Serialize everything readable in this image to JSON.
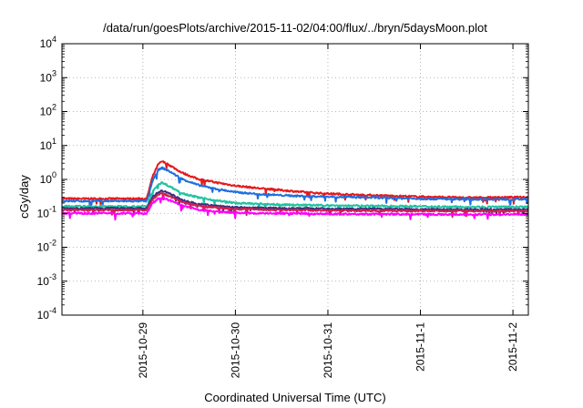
{
  "chart_data": {
    "type": "line",
    "title": "/data/run/goesPlots/archive/2015-11-02/04:00/flux/../bryn/5daysMoon.plot",
    "xlabel": "Coordinated Universal Time (UTC)",
    "ylabel": "cGy/day",
    "yscale": "log",
    "ylim": [
      0.0001,
      10000
    ],
    "xlim": [
      "2015-10-28 03:00",
      "2015-11-02 04:00"
    ],
    "x_ticks": [
      "2015-10-29",
      "2015-10-30",
      "2015-10-31",
      "2015-11-1",
      "2015-11-2"
    ],
    "y_ticks": [
      {
        "base": "10",
        "exp": "-4"
      },
      {
        "base": "10",
        "exp": "-3"
      },
      {
        "base": "10",
        "exp": "-2"
      },
      {
        "base": "10",
        "exp": "-1"
      },
      {
        "base": "10",
        "exp": "0"
      },
      {
        "base": "10",
        "exp": "1"
      },
      {
        "base": "10",
        "exp": "2"
      },
      {
        "base": "10",
        "exp": "3"
      },
      {
        "base": "10",
        "exp": "4"
      }
    ],
    "grid": true,
    "series": [
      {
        "color": "#e41a1c",
        "points": [
          [
            "2015-10-28 03:00",
            0.27
          ],
          [
            "2015-10-29 00:00",
            0.27
          ],
          [
            "2015-10-29 01:00",
            0.27
          ],
          [
            "2015-10-29 02:30",
            1.2
          ],
          [
            "2015-10-29 04:00",
            2.8
          ],
          [
            "2015-10-29 05:00",
            3.4
          ],
          [
            "2015-10-29 07:00",
            2.6
          ],
          [
            "2015-10-29 10:00",
            1.6
          ],
          [
            "2015-10-29 14:00",
            1.05
          ],
          [
            "2015-10-29 18:00",
            0.85
          ],
          [
            "2015-10-30 00:00",
            0.65
          ],
          [
            "2015-10-30 06:00",
            0.55
          ],
          [
            "2015-10-30 12:00",
            0.48
          ],
          [
            "2015-10-30 18:00",
            0.42
          ],
          [
            "2015-10-31 00:00",
            0.38
          ],
          [
            "2015-10-31 12:00",
            0.34
          ],
          [
            "2015-11-01 00:00",
            0.31
          ],
          [
            "2015-11-01 12:00",
            0.29
          ],
          [
            "2015-11-02 04:00",
            0.3
          ]
        ]
      },
      {
        "color": "#1f6fe0",
        "points": [
          [
            "2015-10-28 03:00",
            0.23
          ],
          [
            "2015-10-29 00:00",
            0.23
          ],
          [
            "2015-10-29 01:00",
            0.23
          ],
          [
            "2015-10-29 02:30",
            0.9
          ],
          [
            "2015-10-29 04:00",
            1.9
          ],
          [
            "2015-10-29 05:00",
            2.2
          ],
          [
            "2015-10-29 07:00",
            1.7
          ],
          [
            "2015-10-29 10:00",
            1.05
          ],
          [
            "2015-10-29 14:00",
            0.7
          ],
          [
            "2015-10-29 18:00",
            0.55
          ],
          [
            "2015-10-30 00:00",
            0.42
          ],
          [
            "2015-10-30 06:00",
            0.37
          ],
          [
            "2015-10-30 12:00",
            0.34
          ],
          [
            "2015-10-30 18:00",
            0.32
          ],
          [
            "2015-10-31 00:00",
            0.31
          ],
          [
            "2015-10-31 12:00",
            0.29
          ],
          [
            "2015-11-01 00:00",
            0.27
          ],
          [
            "2015-11-01 12:00",
            0.26
          ],
          [
            "2015-11-02 04:00",
            0.26
          ]
        ]
      },
      {
        "color": "#1fc3a0",
        "points": [
          [
            "2015-10-28 03:00",
            0.16
          ],
          [
            "2015-10-29 00:00",
            0.16
          ],
          [
            "2015-10-29 01:00",
            0.16
          ],
          [
            "2015-10-29 02:30",
            0.45
          ],
          [
            "2015-10-29 04:00",
            0.72
          ],
          [
            "2015-10-29 05:00",
            0.8
          ],
          [
            "2015-10-29 07:00",
            0.62
          ],
          [
            "2015-10-29 10:00",
            0.4
          ],
          [
            "2015-10-29 14:00",
            0.3
          ],
          [
            "2015-10-29 18:00",
            0.25
          ],
          [
            "2015-10-30 00:00",
            0.2
          ],
          [
            "2015-10-30 06:00",
            0.19
          ],
          [
            "2015-10-30 12:00",
            0.18
          ],
          [
            "2015-10-30 18:00",
            0.175
          ],
          [
            "2015-10-31 00:00",
            0.17
          ],
          [
            "2015-10-31 12:00",
            0.165
          ],
          [
            "2015-11-01 00:00",
            0.16
          ],
          [
            "2015-11-01 12:00",
            0.155
          ],
          [
            "2015-11-02 04:00",
            0.155
          ]
        ]
      },
      {
        "color": "#3b2f7f",
        "points": [
          [
            "2015-10-28 03:00",
            0.14
          ],
          [
            "2015-10-29 00:00",
            0.14
          ],
          [
            "2015-10-29 01:00",
            0.14
          ],
          [
            "2015-10-29 02:30",
            0.3
          ],
          [
            "2015-10-29 04:00",
            0.42
          ],
          [
            "2015-10-29 05:00",
            0.46
          ],
          [
            "2015-10-29 07:00",
            0.38
          ],
          [
            "2015-10-29 10:00",
            0.25
          ],
          [
            "2015-10-29 14:00",
            0.19
          ],
          [
            "2015-10-29 18:00",
            0.17
          ],
          [
            "2015-10-30 00:00",
            0.15
          ],
          [
            "2015-10-30 06:00",
            0.145
          ],
          [
            "2015-10-30 12:00",
            0.14
          ],
          [
            "2015-10-30 18:00",
            0.14
          ],
          [
            "2015-10-31 00:00",
            0.135
          ],
          [
            "2015-10-31 12:00",
            0.135
          ],
          [
            "2015-11-01 00:00",
            0.13
          ],
          [
            "2015-11-01 12:00",
            0.13
          ],
          [
            "2015-11-02 04:00",
            0.13
          ]
        ]
      },
      {
        "color": "#d02050",
        "points": [
          [
            "2015-10-28 03:00",
            0.125
          ],
          [
            "2015-10-29 00:00",
            0.125
          ],
          [
            "2015-10-29 01:00",
            0.125
          ],
          [
            "2015-10-29 02:30",
            0.26
          ],
          [
            "2015-10-29 04:00",
            0.36
          ],
          [
            "2015-10-29 05:00",
            0.39
          ],
          [
            "2015-10-29 07:00",
            0.32
          ],
          [
            "2015-10-29 10:00",
            0.22
          ],
          [
            "2015-10-29 14:00",
            0.17
          ],
          [
            "2015-10-29 18:00",
            0.15
          ],
          [
            "2015-10-30 00:00",
            0.135
          ],
          [
            "2015-10-30 06:00",
            0.13
          ],
          [
            "2015-10-30 12:00",
            0.125
          ],
          [
            "2015-10-30 18:00",
            0.125
          ],
          [
            "2015-10-31 00:00",
            0.12
          ],
          [
            "2015-10-31 12:00",
            0.12
          ],
          [
            "2015-11-01 00:00",
            0.118
          ],
          [
            "2015-11-01 12:00",
            0.117
          ],
          [
            "2015-11-02 04:00",
            0.117
          ]
        ]
      },
      {
        "color": "#ff00ff",
        "points": [
          [
            "2015-10-28 03:00",
            0.1
          ],
          [
            "2015-10-29 00:00",
            0.1
          ],
          [
            "2015-10-29 01:00",
            0.1
          ],
          [
            "2015-10-29 02:30",
            0.2
          ],
          [
            "2015-10-29 04:00",
            0.27
          ],
          [
            "2015-10-29 05:00",
            0.29
          ],
          [
            "2015-10-29 07:00",
            0.24
          ],
          [
            "2015-10-29 10:00",
            0.17
          ],
          [
            "2015-10-29 14:00",
            0.13
          ],
          [
            "2015-10-29 18:00",
            0.115
          ],
          [
            "2015-10-30 00:00",
            0.105
          ],
          [
            "2015-10-30 06:00",
            0.1
          ],
          [
            "2015-10-30 12:00",
            0.1
          ],
          [
            "2015-10-30 18:00",
            0.098
          ],
          [
            "2015-10-31 00:00",
            0.096
          ],
          [
            "2015-10-31 12:00",
            0.095
          ],
          [
            "2015-11-01 00:00",
            0.094
          ],
          [
            "2015-11-01 12:00",
            0.093
          ],
          [
            "2015-11-02 04:00",
            0.093
          ]
        ]
      }
    ]
  }
}
